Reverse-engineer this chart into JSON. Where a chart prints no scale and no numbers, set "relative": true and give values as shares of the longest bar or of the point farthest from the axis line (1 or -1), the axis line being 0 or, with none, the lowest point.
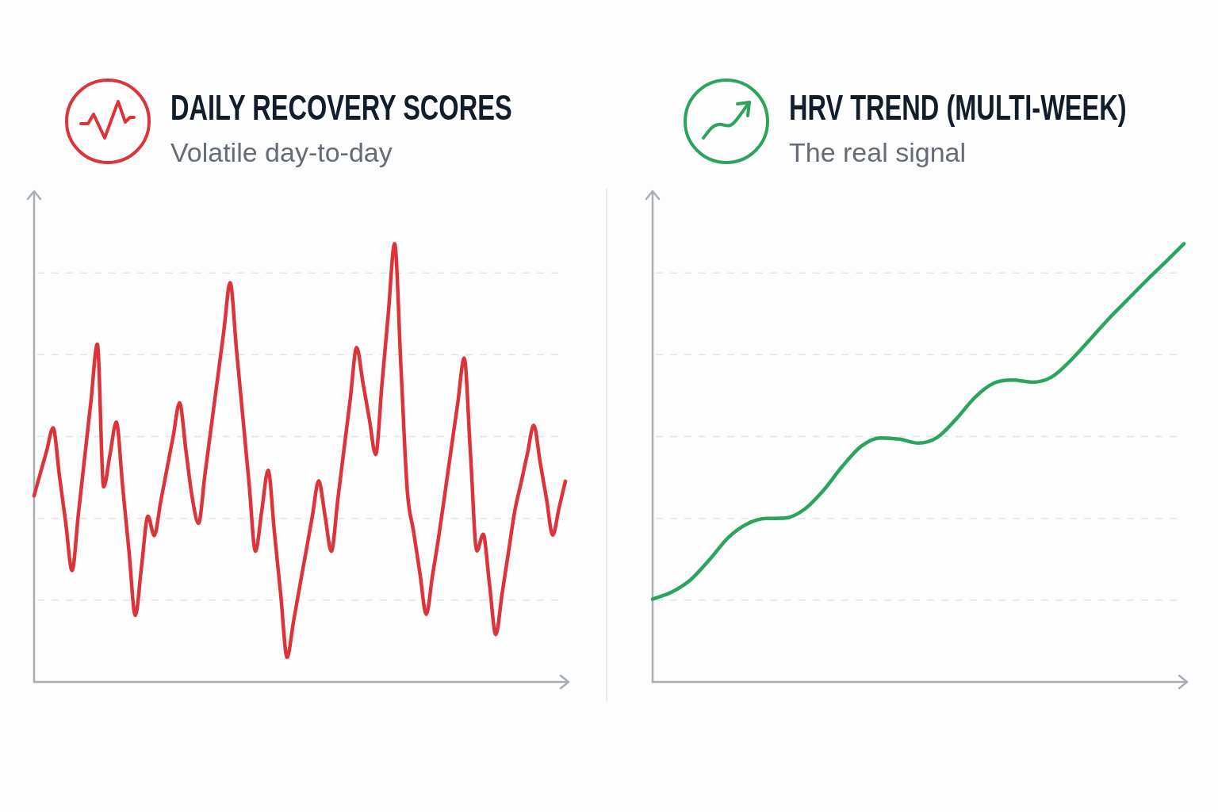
{
  "chart_data": [
    {
      "type": "line",
      "title": "DAILY RECOVERY SCORES",
      "subtitle": "Volatile day-to-day",
      "relative": true,
      "grid": "y",
      "categories": [
        null,
        null,
        null,
        null,
        null,
        null,
        null,
        null,
        null,
        null,
        null,
        null,
        null,
        null,
        null,
        null,
        null,
        null,
        null,
        null,
        null,
        null,
        null,
        null,
        null,
        null,
        null,
        null,
        null,
        null,
        null,
        null,
        null,
        null,
        null,
        null,
        null,
        null,
        null,
        null,
        null,
        null,
        null,
        null,
        null,
        null,
        null,
        null,
        null,
        null,
        null,
        null,
        null,
        null,
        null,
        null,
        null,
        null,
        null,
        null,
        null,
        null,
        null,
        null,
        null,
        null,
        null,
        null,
        null,
        null,
        null,
        null,
        null,
        null,
        null,
        null,
        null,
        null,
        null,
        null,
        null,
        null,
        null,
        null,
        null
      ],
      "series": [
        {
          "color": "#dc343b",
          "values": [
            0.425,
            0.477,
            0.528,
            0.58,
            0.471,
            0.363,
            0.254,
            0.383,
            0.513,
            0.642,
            0.771,
            0.445,
            0.519,
            0.593,
            0.446,
            0.299,
            0.152,
            0.265,
            0.378,
            0.334,
            0.41,
            0.486,
            0.561,
            0.637,
            0.529,
            0.421,
            0.362,
            0.472,
            0.582,
            0.691,
            0.801,
            0.911,
            0.758,
            0.605,
            0.451,
            0.298,
            0.391,
            0.483,
            0.341,
            0.198,
            0.056,
            0.137,
            0.218,
            0.298,
            0.379,
            0.459,
            0.379,
            0.298,
            0.414,
            0.531,
            0.647,
            0.763,
            0.682,
            0.6,
            0.519,
            0.679,
            0.84,
            1.0,
            0.719,
            0.437,
            0.343,
            0.248,
            0.154,
            0.244,
            0.334,
            0.435,
            0.537,
            0.638,
            0.739,
            0.519,
            0.299,
            0.337,
            0.223,
            0.108,
            0.202,
            0.296,
            0.39,
            0.455,
            0.521,
            0.586,
            0.502,
            0.419,
            0.335,
            0.397,
            0.458
          ]
        }
      ]
    },
    {
      "type": "line",
      "title": "HRV TREND (MULTI-WEEK)",
      "subtitle": "The real signal",
      "relative": true,
      "grid": "y",
      "categories": [
        null,
        null,
        null,
        null,
        null,
        null,
        null,
        null,
        null,
        null,
        null,
        null,
        null,
        null,
        null,
        null,
        null,
        null,
        null,
        null,
        null,
        null,
        null,
        null,
        null,
        null,
        null,
        null,
        null
      ],
      "series": [
        {
          "color": "#2ca55c",
          "values": [
            0.189,
            0.205,
            0.233,
            0.279,
            0.33,
            0.361,
            0.373,
            0.374,
            0.394,
            0.437,
            0.492,
            0.538,
            0.557,
            0.554,
            0.545,
            0.558,
            0.6,
            0.65,
            0.682,
            0.689,
            0.684,
            0.695,
            0.732,
            0.779,
            0.827,
            0.871,
            0.915,
            0.957,
            1.0
          ]
        }
      ]
    }
  ]
}
